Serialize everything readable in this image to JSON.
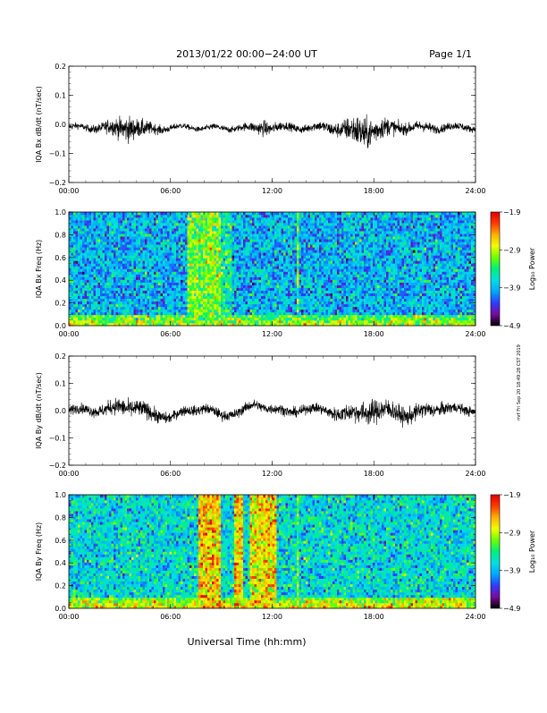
{
  "header": {
    "title": "2013/01/22  00:00−24:00 UT",
    "page": "Page 1/1"
  },
  "footer": {
    "xlabel": "Universal Time (hh:mm)"
  },
  "side_note": "mrf Fri Sep 20 18:49:28 CST 2019",
  "colorbar": {
    "label": "Log₁₀ Power",
    "ticks": [
      "−1.9",
      "−2.9",
      "−3.9",
      "−4.9"
    ],
    "tick_values": [
      -1.9,
      -2.9,
      -3.9,
      -4.9
    ],
    "colors": [
      "#000000",
      "#7a0a9c",
      "#2f3cff",
      "#00a8ff",
      "#00e0e0",
      "#00f07a",
      "#6cff00",
      "#f0ff00",
      "#ffb000",
      "#ff3a00",
      "#e00000"
    ]
  },
  "x_ticks": [
    "00:00",
    "06:00",
    "12:00",
    "18:00",
    "24:00"
  ],
  "chart_data": [
    {
      "type": "line",
      "ylabel": "IQA Bx dB/dt (nT/sec)",
      "xlim": [
        0,
        24
      ],
      "ylim": [
        -0.2,
        0.2
      ],
      "yticks": [
        "0.2",
        "0.1",
        "0.0",
        "−0.1",
        "−0.2"
      ],
      "ytick_values": [
        0.2,
        0.1,
        0.0,
        -0.1,
        -0.2
      ],
      "series": [
        {
          "x": [
            0,
            1,
            2,
            3,
            3.5,
            4,
            4.5,
            5,
            6,
            7,
            8,
            9,
            10,
            11,
            11.5,
            12,
            13,
            14,
            15,
            16,
            16.5,
            17,
            17.5,
            18,
            18.5,
            19,
            20,
            21,
            22,
            23,
            24
          ],
          "mean": [
            -0.01,
            -0.012,
            -0.01,
            -0.015,
            -0.01,
            -0.012,
            -0.02,
            -0.015,
            -0.012,
            -0.01,
            -0.012,
            -0.015,
            -0.01,
            -0.015,
            -0.008,
            -0.012,
            -0.01,
            -0.012,
            -0.01,
            -0.015,
            -0.02,
            -0.025,
            -0.03,
            -0.02,
            -0.015,
            -0.012,
            -0.01,
            -0.012,
            -0.01,
            -0.01,
            -0.01
          ],
          "amplitude": [
            0.012,
            0.012,
            0.02,
            0.04,
            0.05,
            0.035,
            0.03,
            0.02,
            0.012,
            0.01,
            0.01,
            0.012,
            0.012,
            0.02,
            0.03,
            0.02,
            0.015,
            0.015,
            0.02,
            0.03,
            0.045,
            0.06,
            0.06,
            0.05,
            0.04,
            0.03,
            0.02,
            0.02,
            0.015,
            0.015,
            0.012
          ]
        }
      ]
    },
    {
      "type": "heatmap",
      "ylabel": "IQA Bx Freq (Hz)",
      "xlim": [
        0,
        24
      ],
      "ylim": [
        0,
        1.0
      ],
      "yticks": [
        "1.0",
        "0.8",
        "0.6",
        "0.4",
        "0.2",
        "0.0"
      ],
      "ytick_values": [
        1.0,
        0.8,
        0.6,
        0.4,
        0.2,
        0.0
      ],
      "zlim": [
        -4.9,
        -1.9
      ],
      "background_level": -3.9,
      "enhanced_bands": [
        {
          "x": [
            7.0,
            9.0
          ],
          "level": -3.1
        },
        {
          "x": [
            9.0,
            9.6
          ],
          "level": -3.5
        },
        {
          "x": [
            13.4,
            13.6
          ],
          "level": -3.3
        }
      ],
      "low_freq_enhancement": {
        "y_max": 0.1,
        "level": -2.9
      }
    },
    {
      "type": "line",
      "ylabel": "IQA By dB/dt (nT/sec)",
      "xlim": [
        0,
        24
      ],
      "ylim": [
        -0.2,
        0.2
      ],
      "yticks": [
        "0.2",
        "0.1",
        "0.0",
        "−0.1",
        "−0.2"
      ],
      "ytick_values": [
        0.2,
        0.1,
        0.0,
        -0.1,
        -0.2
      ],
      "series": [
        {
          "x": [
            0,
            1,
            2,
            3,
            4,
            5,
            6,
            7,
            8,
            9,
            10,
            11,
            12,
            13,
            14,
            15,
            16,
            17,
            18,
            19,
            20,
            21,
            22,
            23,
            24
          ],
          "mean": [
            0.0,
            0.005,
            0.0,
            0.015,
            0.01,
            -0.015,
            -0.025,
            0.0,
            0.01,
            -0.02,
            -0.005,
            0.02,
            0.01,
            -0.01,
            0.01,
            0.0,
            -0.01,
            -0.01,
            0.0,
            0.0,
            -0.02,
            0.0,
            0.01,
            0.005,
            0.0
          ],
          "amplitude": [
            0.02,
            0.02,
            0.025,
            0.035,
            0.035,
            0.03,
            0.02,
            0.02,
            0.02,
            0.02,
            0.02,
            0.02,
            0.02,
            0.02,
            0.02,
            0.02,
            0.03,
            0.04,
            0.05,
            0.04,
            0.035,
            0.03,
            0.025,
            0.02,
            0.02
          ]
        }
      ]
    },
    {
      "type": "heatmap",
      "ylabel": "IQA By Freq (Hz)",
      "xlim": [
        0,
        24
      ],
      "ylim": [
        0,
        1.0
      ],
      "yticks": [
        "1.0",
        "0.8",
        "0.6",
        "0.4",
        "0.2",
        "0.0"
      ],
      "ytick_values": [
        1.0,
        0.8,
        0.6,
        0.4,
        0.2,
        0.0
      ],
      "zlim": [
        -4.9,
        -1.9
      ],
      "background_level": -3.7,
      "enhanced_bands": [
        {
          "x": [
            7.7,
            9.0
          ],
          "level": -2.6
        },
        {
          "x": [
            9.8,
            10.3
          ],
          "level": -2.6
        },
        {
          "x": [
            10.7,
            12.2
          ],
          "level": -2.7
        },
        {
          "x": [
            13.4,
            13.6
          ],
          "level": -3.2
        }
      ],
      "low_freq_enhancement": {
        "y_max": 0.1,
        "level": -2.7
      }
    }
  ]
}
